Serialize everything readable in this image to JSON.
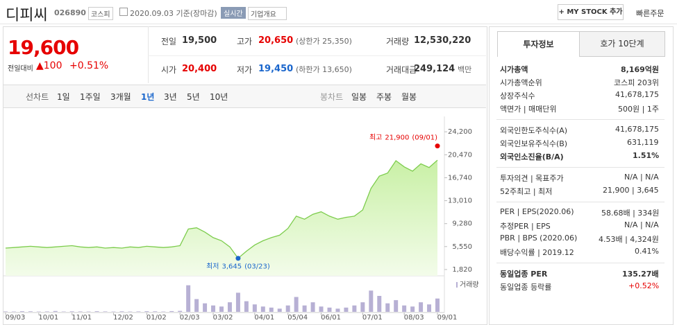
{
  "header": {
    "name": "디피씨",
    "code": "026890",
    "market": "코스피",
    "date": "2020.09.03 기준(장마감)",
    "realtime": "실시간",
    "overview": "기업개요",
    "mystock": "+ MY STOCK 추가",
    "quick_order": "빠른주문"
  },
  "quote": {
    "price": "19,600",
    "change_label": "전일대비",
    "change": "▲100",
    "change_rate": "+0.51%",
    "rows": [
      [
        {
          "label": "전일",
          "value": "19,500"
        },
        {
          "label": "고가",
          "value": "20,650",
          "note": "(상한가 25,350)"
        },
        {
          "label": "거래량",
          "value": "12,530,220"
        }
      ],
      [
        {
          "label": "시가",
          "value": "20,400"
        },
        {
          "label": "저가",
          "value": "19,450",
          "note": "(하한가 13,650)"
        },
        {
          "label": "거래대금",
          "value": "249,124",
          "note": "백만"
        }
      ]
    ]
  },
  "tabs": {
    "line_label": "선차트",
    "line": [
      "1일",
      "1주일",
      "3개월",
      "1년",
      "3년",
      "5년",
      "10년"
    ],
    "candle_label": "봉차트",
    "candle": [
      "일봉",
      "주봉",
      "월봉"
    ]
  },
  "chart_data": {
    "type": "line",
    "color": "#7ccc4c",
    "grid": false,
    "categories": [
      "09/03",
      null,
      null,
      null,
      "10/01",
      null,
      null,
      null,
      "11/01",
      null,
      null,
      null,
      null,
      "12/02",
      null,
      null,
      null,
      "01/02",
      null,
      null,
      null,
      "02/03",
      null,
      null,
      null,
      "03/02",
      null,
      null,
      null,
      null,
      "04/01",
      null,
      null,
      null,
      "05/04",
      null,
      null,
      null,
      "06/01",
      null,
      null,
      null,
      null,
      "07/01",
      null,
      null,
      null,
      null,
      "08/03",
      null,
      null,
      null,
      "09/01"
    ],
    "series": [
      {
        "name": "종가",
        "color": "#7ccc4c",
        "values": [
          5300,
          5400,
          5500,
          5600,
          5500,
          5400,
          5500,
          5600,
          5700,
          5500,
          5400,
          5500,
          5300,
          5400,
          5300,
          5500,
          5400,
          5600,
          5500,
          5400,
          5500,
          5700,
          8400,
          8600,
          7900,
          7000,
          6500,
          5500,
          3645,
          4800,
          5800,
          6500,
          7000,
          7400,
          8500,
          10500,
          10000,
          10800,
          11200,
          10500,
          10000,
          10300,
          10500,
          11500,
          15000,
          17000,
          17500,
          19500,
          18500,
          17800,
          19000,
          18400,
          19600
        ]
      }
    ],
    "ylim": [
      800,
      26700
    ],
    "yticks": [
      {
        "value": 1820,
        "label": "1,820"
      },
      {
        "value": 5550,
        "label": "5,550"
      },
      {
        "value": 9280,
        "label": "9,280"
      },
      {
        "value": 13010,
        "label": "13,010"
      },
      {
        "value": 16740,
        "label": "16,740"
      },
      {
        "value": 20470,
        "label": "20,470"
      },
      {
        "value": 24200,
        "label": "24,200"
      }
    ],
    "annotations": [
      {
        "label": "최고",
        "value": 21900,
        "value_label": "21,900",
        "date": "(09/01)",
        "color": "#e60000"
      },
      {
        "label": "최저",
        "value": 3645,
        "value_label": "3,645",
        "date": "(03/23)",
        "color": "#1a66cc"
      }
    ],
    "volume": {
      "name": "거래량",
      "color": "#b7b0d4",
      "ylim": [
        0,
        30000000
      ],
      "values": [
        400000,
        300000,
        600000,
        500000,
        300000,
        400000,
        800000,
        300000,
        500000,
        400000,
        300000,
        600000,
        400000,
        300000,
        500000,
        300000,
        400000,
        600000,
        500000,
        300000,
        700000,
        900000,
        25000000,
        12000000,
        8000000,
        6000000,
        5000000,
        9000000,
        18000000,
        10000000,
        7000000,
        5000000,
        4000000,
        3000000,
        6000000,
        14000000,
        6000000,
        9000000,
        5000000,
        4000000,
        3000000,
        4000000,
        6000000,
        9000000,
        20000000,
        15000000,
        8000000,
        11000000,
        6000000,
        5000000,
        9000000,
        7000000,
        12530220
      ]
    }
  },
  "invest": {
    "tabs": [
      "투자정보",
      "호가 10단계"
    ],
    "groups": [
      [
        {
          "label": "시가총액",
          "value": "8,169억원",
          "bold": true
        },
        {
          "label": "시가총액순위",
          "value": "코스피 203위"
        },
        {
          "label": "상장주식수",
          "value": "41,678,175"
        },
        {
          "label": "액면가 | 매매단위",
          "value": "500원 | 1주"
        }
      ],
      [
        {
          "label": "외국인한도주식수(A)",
          "value": "41,678,175"
        },
        {
          "label": "외국인보유주식수(B)",
          "value": "631,119"
        },
        {
          "label": "외국인소진율(B/A)",
          "value": "1.51%",
          "bold": true
        }
      ],
      [
        {
          "label": "투자의견 | 목표주가",
          "value": "N/A | N/A"
        },
        {
          "label": "52주최고 | 최저",
          "value": "21,900 | 3,645"
        }
      ],
      [
        {
          "label": "PER | EPS(2020.06)",
          "value": "58.68배 | 334원"
        },
        {
          "label": "추정PER | EPS",
          "value": "N/A | N/A"
        },
        {
          "label": "PBR | BPS (2020.06)",
          "value": "4.53배 | 4,324원"
        },
        {
          "label": "배당수익률 | 2019.12",
          "value": "0.41%"
        }
      ],
      [
        {
          "label": "동일업종 PER",
          "value": "135.27배",
          "bold": true
        },
        {
          "label": "동일업종 등락률",
          "value": "+0.52%",
          "red": true
        }
      ]
    ]
  }
}
